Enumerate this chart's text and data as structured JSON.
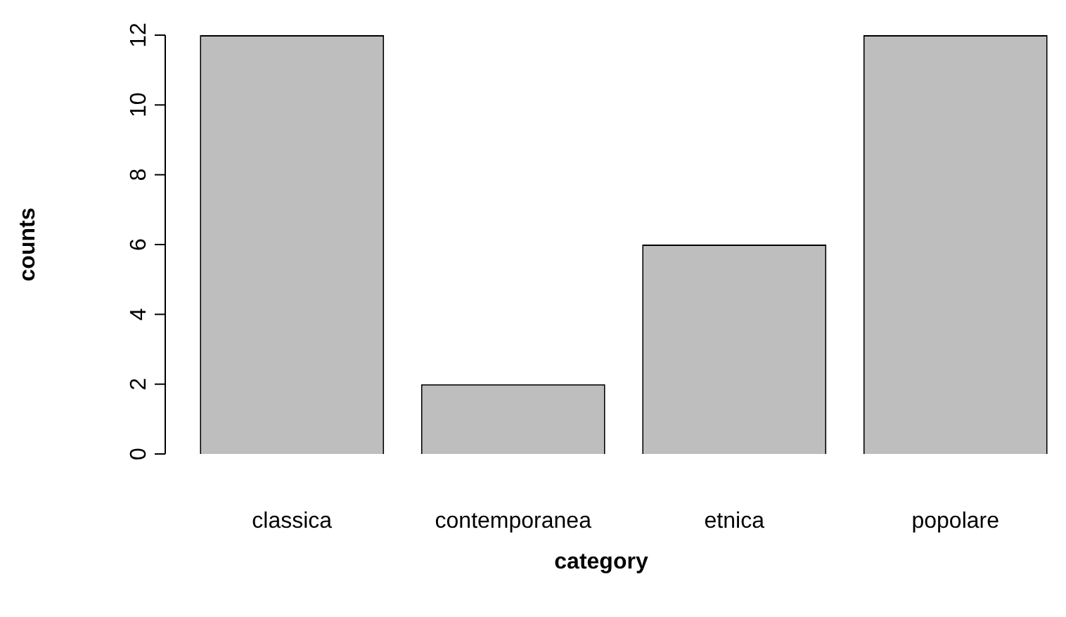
{
  "chart_data": {
    "type": "bar",
    "xlabel": "category",
    "ylabel": "counts",
    "categories": [
      "classica",
      "contemporanea",
      "etnica",
      "popolare"
    ],
    "values": [
      12,
      2,
      6,
      12
    ],
    "color": "#bebebe",
    "ylim": [
      0,
      12
    ],
    "yticks": [
      0,
      2,
      4,
      6,
      8,
      10,
      12
    ]
  }
}
